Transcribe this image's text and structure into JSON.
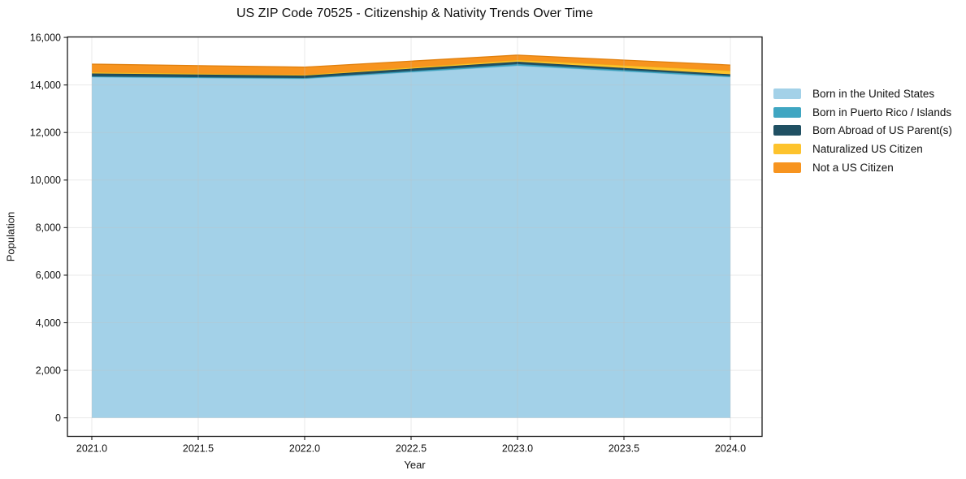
{
  "title": "US ZIP Code 70525 - Citizenship & Nativity Trends Over Time",
  "chart_data": {
    "type": "area",
    "stacked": true,
    "title": "US ZIP Code 70525 - Citizenship & Nativity Trends Over Time",
    "xlabel": "Year",
    "ylabel": "Population",
    "x": [
      2021,
      2022,
      2023,
      2024
    ],
    "series": [
      {
        "name": "Born in the United States",
        "color": "#a3d1e8",
        "edge_color": "#8ec4de",
        "values": [
          14330,
          14260,
          14810,
          14330
        ]
      },
      {
        "name": "Born in Puerto Rico / Islands",
        "color": "#3fa6c2",
        "edge_color": "#358fa9",
        "values": [
          35,
          35,
          70,
          50
        ]
      },
      {
        "name": "Born Abroad of US Parent(s)",
        "color": "#205063",
        "edge_color": "#18404f",
        "values": [
          120,
          100,
          100,
          70
        ]
      },
      {
        "name": "Naturalized US Citizen",
        "color": "#fdc32d",
        "edge_color": "#edb017",
        "values": [
          50,
          35,
          70,
          150
        ]
      },
      {
        "name": "Not a US Citizen",
        "color": "#f7941f",
        "edge_color": "#e07f0d",
        "values": [
          340,
          320,
          205,
          240
        ]
      }
    ],
    "totals": [
      14875,
      14750,
      15255,
      14840
    ],
    "xlim": [
      2020.8855,
      2024.1489
    ],
    "ylim": [
      -780,
      16020
    ],
    "x_ticks": {
      "values": [
        2021.0,
        2021.5,
        2022.0,
        2022.5,
        2023.0,
        2023.5,
        2024.0
      ],
      "labels": [
        "2021.0",
        "2021.5",
        "2022.0",
        "2022.5",
        "2023.0",
        "2023.5",
        "2024.0"
      ]
    },
    "y_ticks": {
      "values": [
        0,
        2000,
        4000,
        6000,
        8000,
        10000,
        12000,
        14000,
        16000
      ],
      "labels": [
        "0",
        "2,000",
        "4,000",
        "6,000",
        "8,000",
        "10,000",
        "12,000",
        "14,000",
        "16,000"
      ]
    },
    "grid": true,
    "grid_color": "#bfbfbf",
    "grid_opacity": 0.35,
    "border_color": "#1a1a1a",
    "legend_position": "right of plot, no frame"
  }
}
